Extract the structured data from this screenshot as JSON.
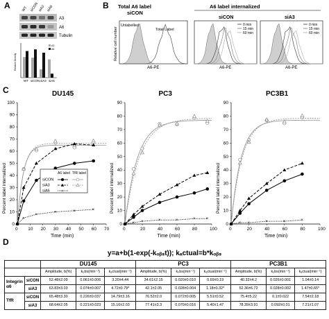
{
  "panels": {
    "A": "A",
    "B": "B",
    "C": "C",
    "D": "D"
  },
  "panel_a": {
    "lanes": [
      "WT",
      "siCON",
      "siA3",
      "siA6"
    ],
    "blots": [
      "A3",
      "A6",
      "Tubulin"
    ],
    "bar_ylabel": "Relative Density",
    "legend": [
      "A3",
      "A6"
    ],
    "chart_data": {
      "type": "bar",
      "categories": [
        "WT",
        "siCON",
        "siA3",
        "siA6"
      ],
      "series": [
        {
          "name": "A3",
          "values": [
            0.62,
            0.6,
            0.25,
            0.55
          ]
        },
        {
          "name": "A6",
          "values": [
            0.8,
            0.85,
            0.75,
            0.12
          ]
        }
      ],
      "ylabel": "Relative Density",
      "ylim": [
        0,
        1
      ]
    }
  },
  "panel_b": {
    "header_left": "Total A6 label",
    "header_left_sub": "siCON",
    "header_right": "A6 label internalized",
    "plots": [
      {
        "title": "",
        "labels": [
          "Unlabelled",
          "Total Label"
        ],
        "xlabel": "A6-PE"
      },
      {
        "title": "siCON",
        "legend": [
          "0 min",
          "15 min",
          "60 min"
        ],
        "xlabel": "A6-PE"
      },
      {
        "title": "siA3",
        "legend": [
          "0 min",
          "15 min",
          "60 min"
        ],
        "xlabel": "A6-PE"
      }
    ],
    "ylabel": "Relative cell number"
  },
  "panel_c": {
    "ylabel": "Percent label internalized",
    "xlabel": "Time (min)",
    "legend_header": [
      "A6 label",
      "TfR label"
    ],
    "legend_rows": [
      "siCON",
      "siA3",
      "siA6"
    ],
    "chart_data": [
      {
        "type": "scatter",
        "title": "DU145",
        "xlim": [
          0,
          70
        ],
        "ylim": [
          0,
          100
        ],
        "xticks": [
          "0",
          "10",
          "20",
          "30",
          "40",
          "50",
          "60",
          "70"
        ],
        "yticks": [
          "0",
          "10",
          "20",
          "30",
          "40",
          "50",
          "60",
          "70",
          "80",
          "90",
          "100"
        ],
        "series": [
          {
            "name": "siCON",
            "x": [
              0,
              5,
              15,
              30,
              45,
              60
            ],
            "y": [
              0,
              19,
              36,
              46,
              50,
              52
            ]
          },
          {
            "name": "siA3",
            "x": [
              0,
              5,
              15,
              30,
              45,
              60
            ],
            "y": [
              0,
              30,
              50,
              62,
              66,
              65
            ]
          },
          {
            "name": "siA6",
            "x": [
              0,
              5,
              15,
              30,
              45,
              60
            ],
            "y": [
              0,
              5,
              8,
              10,
              11,
              12
            ]
          }
        ]
      },
      {
        "type": "scatter",
        "title": "PC3",
        "xlim": [
          0,
          100
        ],
        "ylim": [
          0,
          90
        ],
        "xticks": [
          "0",
          "20",
          "40",
          "60",
          "80",
          "100"
        ],
        "yticks": [
          "0",
          "10",
          "20",
          "30",
          "40",
          "50",
          "60",
          "70",
          "80",
          "90"
        ],
        "series": [
          {
            "name": "siCON",
            "x": [
              0,
              10,
              20,
              40,
              60,
              80,
              95
            ],
            "y": [
              0,
              5,
              10,
              16,
              20,
              23,
              26
            ]
          },
          {
            "name": "siA3",
            "x": [
              0,
              10,
              20,
              40,
              60,
              80,
              95
            ],
            "y": [
              0,
              7,
              13,
              22,
              29,
              36,
              38
            ]
          },
          {
            "name": "siA6",
            "x": [
              0,
              10,
              20,
              40,
              60,
              80,
              95
            ],
            "y": [
              0,
              1,
              2,
              3,
              3,
              4,
              4
            ]
          }
        ]
      },
      {
        "type": "scatter",
        "title": "PC3B1",
        "xlim": [
          0,
          100
        ],
        "ylim": [
          0,
          90
        ],
        "xticks": [
          "0",
          "20",
          "40",
          "60",
          "80",
          "100"
        ],
        "yticks": [
          "0",
          "10",
          "20",
          "30",
          "40",
          "50",
          "60",
          "70",
          "80",
          "90"
        ],
        "series": [
          {
            "name": "siCON",
            "x": [
              0,
              10,
              20,
              40,
              60,
              80
            ],
            "y": [
              0,
              8,
              15,
              25,
              32,
              37
            ]
          },
          {
            "name": "siA3",
            "x": [
              0,
              10,
              20,
              40,
              60,
              80
            ],
            "y": [
              0,
              10,
              19,
              30,
              40,
              45
            ]
          },
          {
            "name": "siA6",
            "x": [
              0,
              10,
              20,
              40,
              60,
              80
            ],
            "y": [
              0,
              1,
              1,
              2,
              2,
              3
            ]
          }
        ]
      }
    ]
  },
  "panel_d": {
    "equation": "y=a+b(1-exp(-kₒᵦₛt));  kₐctual=b*kₒᵦₛ",
    "cell_lines": [
      "DU145",
      "PC3",
      "PC3B1"
    ],
    "col_headers": [
      "Amplitude, b(%)",
      "kₒbs(min⁻¹)",
      "kₐctual(min⁻¹)"
    ],
    "groups": [
      {
        "name": "Integrin α6",
        "rows": [
          {
            "cond": "siCON",
            "cells": [
              "52.48±2.09",
              "0.061±0.006",
              "3.20±4.44",
              "34.61±2.15",
              "0.020±0.010",
              "0.69±0.19",
              "40.32±4.2",
              "0.026±0.001",
              "1.04±0.14"
            ]
          },
          {
            "cond": "siA3",
            "cells": [
              "63.83±3.03",
              "0.074±0.007",
              "4.72±0.79*",
              "42.1±2.05",
              "0.028±0.004",
              "1.18±0.32*",
              "52.36±6.72",
              "0.028±0.002",
              "1.47±0.65*"
            ]
          }
        ]
      },
      {
        "name": "TfR",
        "rows": [
          {
            "cond": "siCON",
            "cells": [
              "65.48±3.30",
              "0.226±0.037",
              "14.79±3.16",
              "76.52±2.0",
              "0.072±0.005",
              "5.51±0.52",
              "75.4±5.22",
              "0.1±0.022",
              "7.54±2.18"
            ]
          },
          {
            "cond": "siA3",
            "cells": [
              "68.64±2.05",
              "0.221±0.023",
              "15.16±2.03",
              "77.41±3.3",
              "0.070±0.016",
              "5.40±1.47",
              "78.39±3.91",
              "0.092±0.01",
              "7.21±1.07"
            ]
          }
        ]
      }
    ]
  }
}
